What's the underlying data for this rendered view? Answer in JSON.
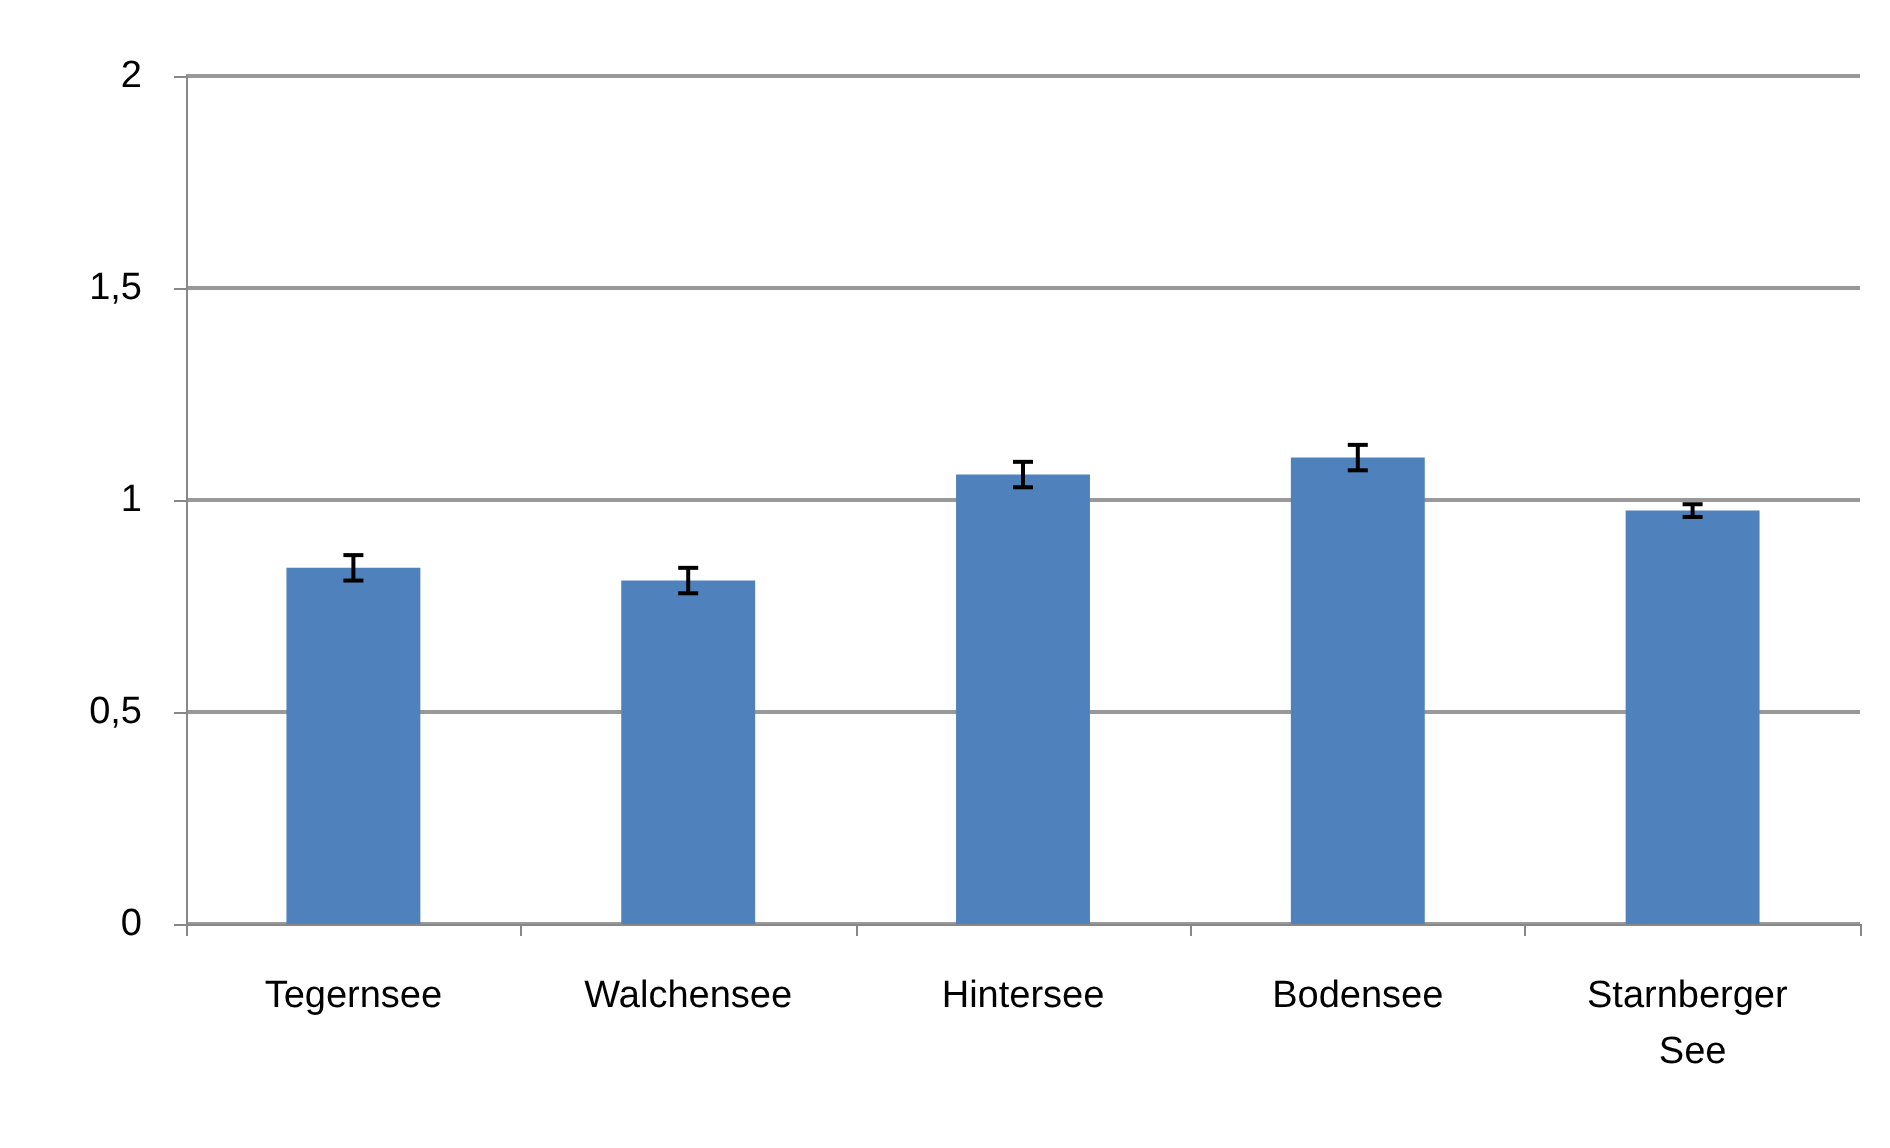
{
  "chart_data": {
    "type": "bar",
    "categories": [
      "Tegernsee",
      "Walchensee",
      "Hintersee",
      "Bodensee",
      "Starnberger See"
    ],
    "values": [
      0.84,
      0.81,
      1.06,
      1.1,
      0.975
    ],
    "errors": [
      0.03,
      0.03,
      0.03,
      0.03,
      0.015
    ],
    "color": "#4f81bd",
    "ylim": [
      0,
      2
    ],
    "yticks": [
      0,
      {
        "value": 0.5,
        "label": "0,5"
      },
      1,
      {
        "value": 1.5,
        "label": "1,5"
      },
      2
    ],
    "grid": "y"
  }
}
